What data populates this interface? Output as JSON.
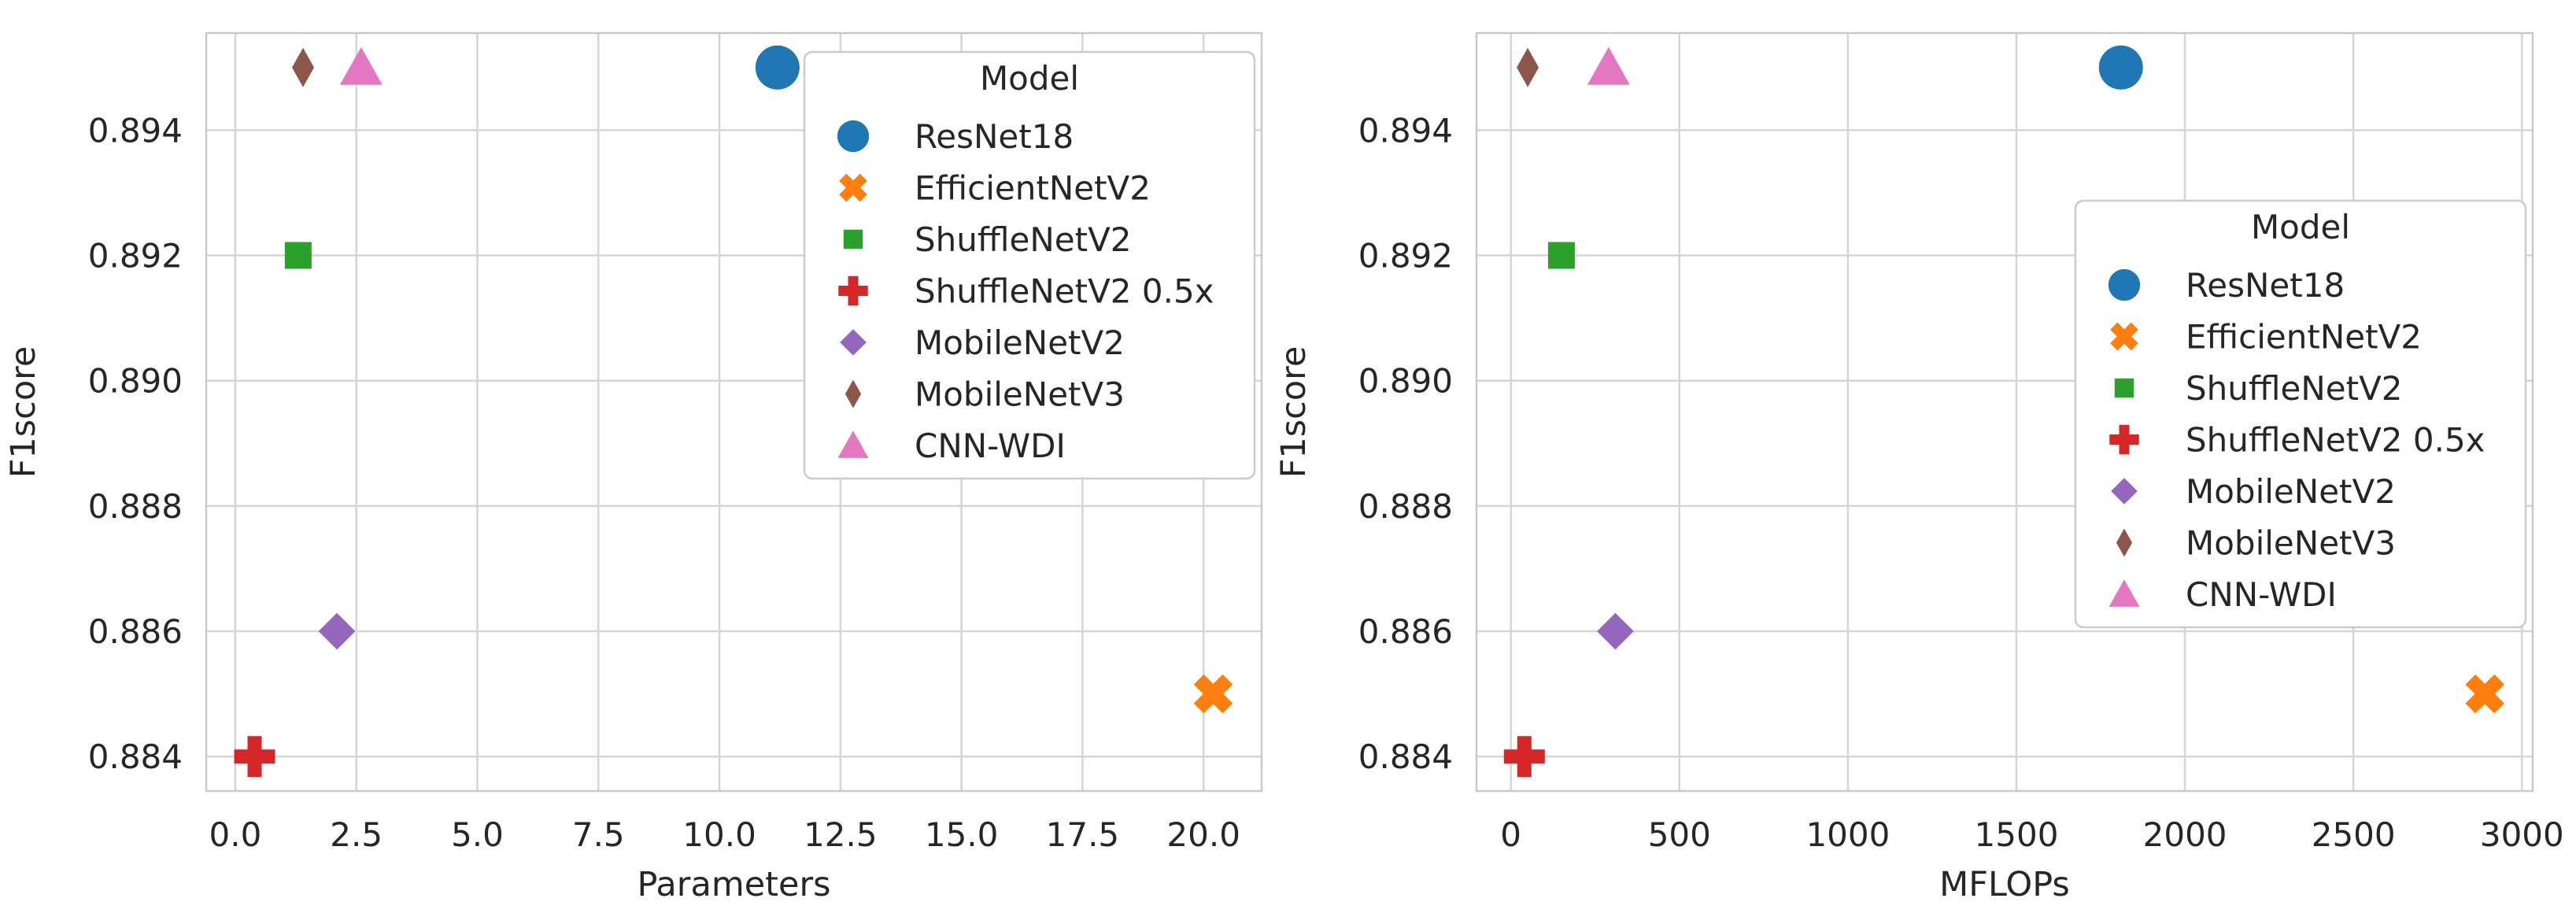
{
  "figure": {
    "background": "#ffffff",
    "text_color": "#262626",
    "grid_color": "#d5d5d5",
    "border_color": "#c9c9c9",
    "legend_bg": "#ffffff",
    "legend_border": "#cccccc"
  },
  "legend": {
    "title": "Model"
  },
  "models": [
    {
      "name": "ResNet18",
      "color": "#1f77b4",
      "marker": "circle"
    },
    {
      "name": "EfficientNetV2",
      "color": "#ff7f0e",
      "marker": "x"
    },
    {
      "name": "ShuffleNetV2",
      "color": "#2ca02c",
      "marker": "square"
    },
    {
      "name": "ShuffleNetV2 0.5x",
      "color": "#d62728",
      "marker": "plus"
    },
    {
      "name": "MobileNetV2",
      "color": "#9467bd",
      "marker": "diamond"
    },
    {
      "name": "MobileNetV3",
      "color": "#8c564b",
      "marker": "thin-diamond"
    },
    {
      "name": "CNN-WDI",
      "color": "#e377c2",
      "marker": "triangle"
    }
  ],
  "chart_data": [
    {
      "type": "scatter",
      "name": "parameters",
      "title": "",
      "xlabel": "Parameters",
      "ylabel": "F1score",
      "xlim": [
        -0.6,
        21.2
      ],
      "ylim": [
        0.88345,
        0.89555
      ],
      "xtick_values": [
        0.0,
        2.5,
        5.0,
        7.5,
        10.0,
        12.5,
        15.0,
        17.5,
        20.0
      ],
      "xtick_labels": [
        "0.0",
        "2.5",
        "5.0",
        "7.5",
        "10.0",
        "12.5",
        "15.0",
        "17.5",
        "20.0"
      ],
      "ytick_values": [
        0.884,
        0.886,
        0.888,
        0.89,
        0.892,
        0.894
      ],
      "ytick_labels": [
        "0.884",
        "0.886",
        "0.888",
        "0.890",
        "0.892",
        "0.894"
      ],
      "grid": true,
      "legend_title": "Model",
      "legend_position": "upper right",
      "points": [
        {
          "model": "ResNet18",
          "x": 11.2,
          "y": 0.895
        },
        {
          "model": "EfficientNetV2",
          "x": 20.2,
          "y": 0.885
        },
        {
          "model": "ShuffleNetV2",
          "x": 1.3,
          "y": 0.892
        },
        {
          "model": "ShuffleNetV2 0.5x",
          "x": 0.4,
          "y": 0.884
        },
        {
          "model": "MobileNetV2",
          "x": 2.1,
          "y": 0.886
        },
        {
          "model": "MobileNetV3",
          "x": 1.4,
          "y": 0.895
        },
        {
          "model": "CNN-WDI",
          "x": 2.6,
          "y": 0.895
        }
      ]
    },
    {
      "type": "scatter",
      "name": "mflops",
      "title": "",
      "xlabel": "MFLOPs",
      "ylabel": "F1score",
      "xlim": [
        -102,
        3032
      ],
      "ylim": [
        0.88345,
        0.89555
      ],
      "xtick_values": [
        0,
        500,
        1000,
        1500,
        2000,
        2500,
        3000
      ],
      "xtick_labels": [
        "0",
        "500",
        "1000",
        "1500",
        "2000",
        "2500",
        "3000"
      ],
      "ytick_values": [
        0.884,
        0.886,
        0.888,
        0.89,
        0.892,
        0.894
      ],
      "ytick_labels": [
        "0.884",
        "0.886",
        "0.888",
        "0.890",
        "0.892",
        "0.894"
      ],
      "grid": true,
      "legend_title": "Model",
      "legend_position": "center right",
      "points": [
        {
          "model": "ResNet18",
          "x": 1810,
          "y": 0.895
        },
        {
          "model": "EfficientNetV2",
          "x": 2890,
          "y": 0.885
        },
        {
          "model": "ShuffleNetV2",
          "x": 150,
          "y": 0.892
        },
        {
          "model": "ShuffleNetV2 0.5x",
          "x": 40,
          "y": 0.884
        },
        {
          "model": "MobileNetV2",
          "x": 310,
          "y": 0.886
        },
        {
          "model": "MobileNetV3",
          "x": 50,
          "y": 0.895
        },
        {
          "model": "CNN-WDI",
          "x": 290,
          "y": 0.895
        }
      ]
    }
  ]
}
